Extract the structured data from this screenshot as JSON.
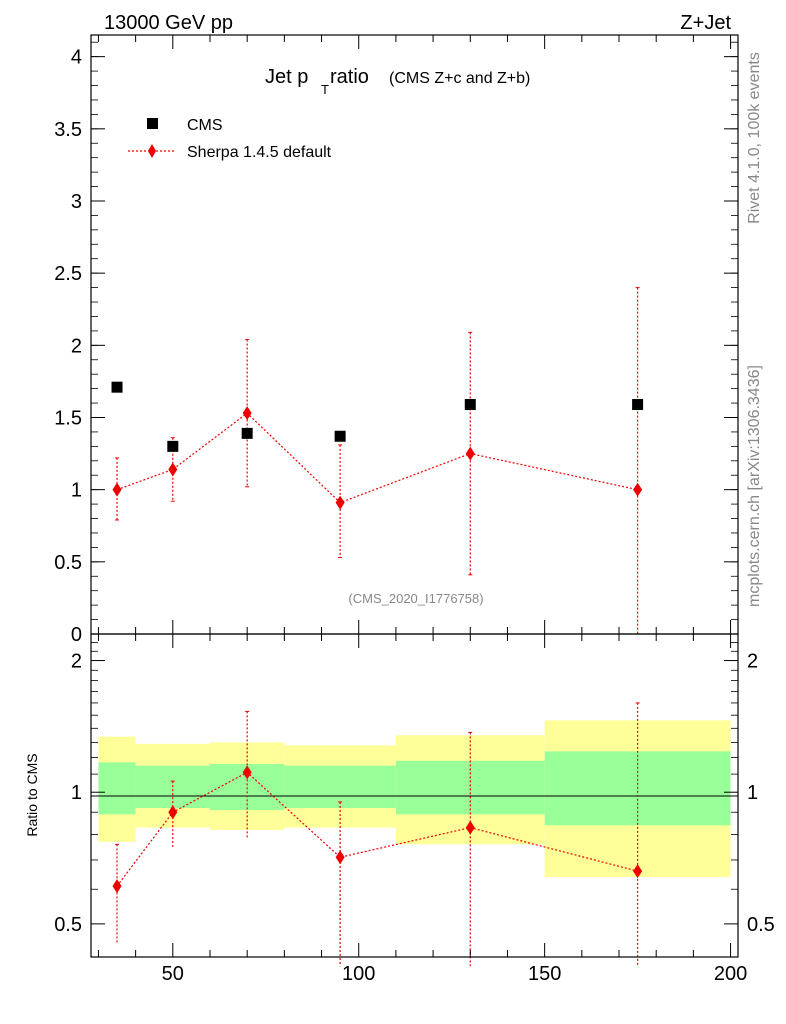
{
  "header": {
    "left_label": "13000 GeV pp",
    "right_label": "Z+Jet"
  },
  "side_text": {
    "rivet": "Rivet 4.1.0,  100k events",
    "mcplots": "mcplots.cern.ch [arXiv:1306.3436]"
  },
  "chart_data": {
    "type": "scatter",
    "title_main": "Jet p",
    "title_sub": "T",
    "title_rest": " ratio",
    "title_extra": "(CMS  Z+c and Z+b)",
    "analysis_id": "(CMS_2020_I1776758)",
    "legend": [
      {
        "name": "CMS",
        "marker": "square",
        "color": "#000000"
      },
      {
        "name": "Sherpa 1.4.5 default",
        "marker": "diamond",
        "color": "#ee0000"
      }
    ],
    "x_range": [
      28,
      202
    ],
    "x_ticks": [
      50,
      100,
      150,
      200
    ],
    "main": {
      "y_range": [
        0,
        4.15
      ],
      "y_ticks": [
        0,
        0.5,
        1,
        1.5,
        2,
        2.5,
        3,
        3.5,
        4
      ],
      "y_tick_labels": [
        "0",
        "0.5",
        "1",
        "1.5",
        "2",
        "2.5",
        "3",
        "3.5",
        "4"
      ],
      "data": [
        {
          "x": 35,
          "y": 1.71
        },
        {
          "x": 50,
          "y": 1.3
        },
        {
          "x": 70,
          "y": 1.39
        },
        {
          "x": 95,
          "y": 1.37
        },
        {
          "x": 130,
          "y": 1.59
        },
        {
          "x": 175,
          "y": 1.59
        }
      ],
      "mc": [
        {
          "x": 35,
          "y": 1.0,
          "lo": 0.79,
          "hi": 1.22
        },
        {
          "x": 50,
          "y": 1.14,
          "lo": 0.92,
          "hi": 1.36
        },
        {
          "x": 70,
          "y": 1.53,
          "lo": 1.02,
          "hi": 2.04
        },
        {
          "x": 95,
          "y": 0.91,
          "lo": 0.53,
          "hi": 1.31
        },
        {
          "x": 130,
          "y": 1.25,
          "lo": 0.41,
          "hi": 2.09
        },
        {
          "x": 175,
          "y": 1.0,
          "lo": 0.0,
          "hi": 2.4
        }
      ]
    },
    "ratio": {
      "ylabel": "Ratio to CMS",
      "y_range": [
        0.42,
        2.3
      ],
      "y_ticks": [
        0.5,
        1,
        2
      ],
      "y_tick_labels": [
        "0.5",
        "1",
        "2"
      ],
      "bands": [
        {
          "x0": 30,
          "x1": 40,
          "g_lo": 0.89,
          "g_hi": 1.17,
          "y_lo": 0.77,
          "y_hi": 1.34
        },
        {
          "x0": 40,
          "x1": 60,
          "g_lo": 0.92,
          "g_hi": 1.15,
          "y_lo": 0.83,
          "y_hi": 1.29
        },
        {
          "x0": 60,
          "x1": 80,
          "g_lo": 0.91,
          "g_hi": 1.16,
          "y_lo": 0.82,
          "y_hi": 1.3
        },
        {
          "x0": 80,
          "x1": 110,
          "g_lo": 0.92,
          "g_hi": 1.15,
          "y_lo": 0.83,
          "y_hi": 1.28
        },
        {
          "x0": 110,
          "x1": 150,
          "g_lo": 0.89,
          "g_hi": 1.18,
          "y_lo": 0.76,
          "y_hi": 1.35
        },
        {
          "x0": 150,
          "x1": 200,
          "g_lo": 0.84,
          "g_hi": 1.24,
          "y_lo": 0.64,
          "y_hi": 1.46
        }
      ],
      "mc": [
        {
          "x": 35,
          "y": 0.61,
          "lo": 0.45,
          "hi": 0.76
        },
        {
          "x": 50,
          "y": 0.9,
          "lo": 0.75,
          "hi": 1.06
        },
        {
          "x": 70,
          "y": 1.11,
          "lo": 0.78,
          "hi": 1.53
        },
        {
          "x": 95,
          "y": 0.71,
          "lo": 0.4,
          "hi": 0.95
        },
        {
          "x": 130,
          "y": 0.83,
          "lo": 0.4,
          "hi": 1.37
        },
        {
          "x": 175,
          "y": 0.66,
          "lo": 0.4,
          "hi": 1.6
        }
      ]
    }
  },
  "colors": {
    "mc": "#ee0000",
    "data": "#000000",
    "band_inner": "#99ff99",
    "band_outer": "#ffff99",
    "side_text": "#888888"
  }
}
